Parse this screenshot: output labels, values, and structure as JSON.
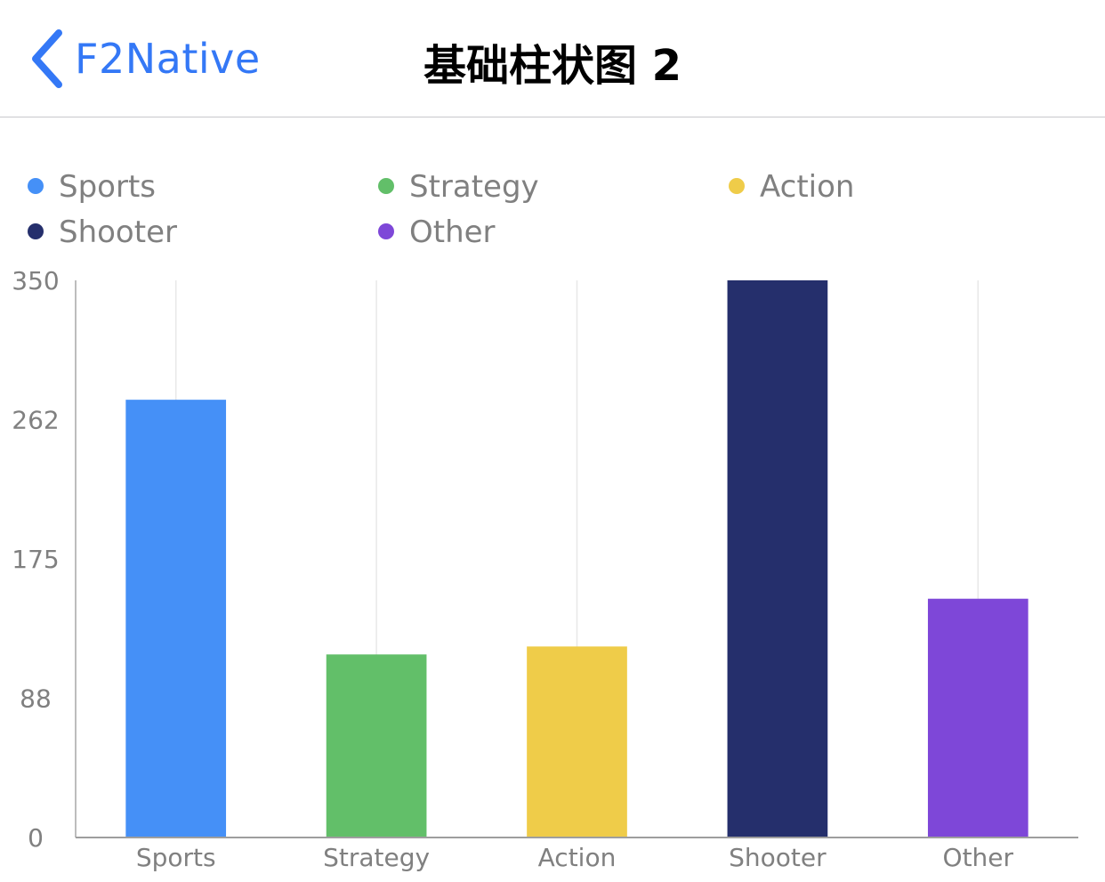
{
  "nav": {
    "back_label": "F2Native",
    "title": "基础柱状图 2",
    "back_color": "#3478f6"
  },
  "chart_data": {
    "type": "bar",
    "categories": [
      "Sports",
      "Strategy",
      "Action",
      "Shooter",
      "Other"
    ],
    "values": [
      275,
      115,
      120,
      350,
      150
    ],
    "colors": [
      "#4590f7",
      "#62bf69",
      "#efcc49",
      "#252f6c",
      "#7e47d8"
    ],
    "legend": {
      "position": "top-left",
      "entries": [
        "Sports",
        "Strategy",
        "Action",
        "Shooter",
        "Other"
      ]
    },
    "y_ticks": [
      "0",
      "88",
      "175",
      "262",
      "350"
    ],
    "ylim": [
      0,
      350
    ],
    "grid": "vertical",
    "title": "",
    "xlabel": "",
    "ylabel": ""
  }
}
